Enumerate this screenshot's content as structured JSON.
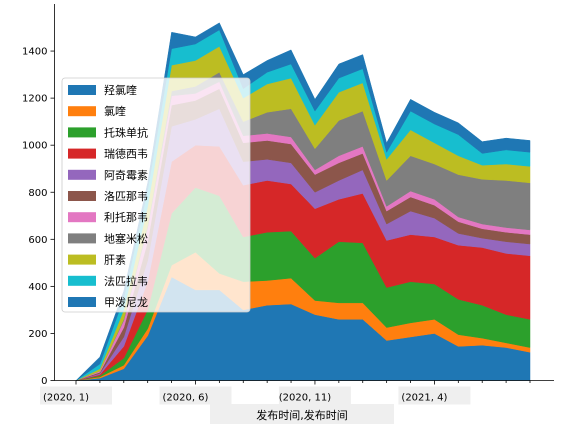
{
  "chart_data": {
    "type": "area",
    "stacked": true,
    "xlabel": "发布时间,发布时间",
    "ylabel": "",
    "ylim": [
      0,
      1600
    ],
    "yticks": [
      0,
      200,
      400,
      600,
      800,
      1000,
      1200,
      1400
    ],
    "xtick_labels": [
      "(2020, 1)",
      "(2020, 6)",
      "(2020, 11)",
      "(2021, 4)"
    ],
    "xtick_index": [
      0,
      5,
      10,
      15
    ],
    "x": [
      "2020-01",
      "2020-02",
      "2020-03",
      "2020-04",
      "2020-05",
      "2020-06",
      "2020-07",
      "2020-08",
      "2020-09",
      "2020-10",
      "2020-11",
      "2020-12",
      "2021-01",
      "2021-02",
      "2021-03",
      "2021-04",
      "2021-05",
      "2021-06",
      "2021-07",
      "2021-08"
    ],
    "legend_position": "upper-left",
    "grid": false,
    "series": [
      {
        "name": "羟氯喹",
        "color": "#1f77b4",
        "values": [
          0,
          10,
          50,
          190,
          440,
          385,
          385,
          300,
          320,
          325,
          280,
          260,
          260,
          170,
          185,
          200,
          145,
          150,
          140,
          120
        ]
      },
      {
        "name": "氯喹",
        "color": "#ff7f0e",
        "values": [
          0,
          5,
          15,
          30,
          50,
          160,
          70,
          120,
          105,
          110,
          60,
          70,
          70,
          55,
          60,
          60,
          50,
          30,
          20,
          20
        ]
      },
      {
        "name": "托珠单抗",
        "color": "#2ca02c",
        "values": [
          0,
          5,
          30,
          80,
          220,
          275,
          330,
          190,
          205,
          200,
          180,
          260,
          255,
          170,
          175,
          150,
          150,
          140,
          120,
          120
        ]
      },
      {
        "name": "瑞德西韦",
        "color": "#d62728",
        "values": [
          0,
          5,
          50,
          120,
          220,
          180,
          210,
          220,
          220,
          200,
          210,
          180,
          210,
          200,
          200,
          200,
          230,
          245,
          260,
          270
        ]
      },
      {
        "name": "阿奇霉素",
        "color": "#9467bd",
        "values": [
          0,
          5,
          40,
          90,
          150,
          110,
          160,
          100,
          90,
          90,
          70,
          80,
          100,
          70,
          100,
          80,
          50,
          40,
          50,
          50
        ]
      },
      {
        "name": "洛匹那韦",
        "color": "#8c564b",
        "values": [
          0,
          5,
          40,
          80,
          90,
          80,
          85,
          80,
          80,
          80,
          75,
          75,
          70,
          55,
          60,
          55,
          50,
          40,
          40,
          40
        ]
      },
      {
        "name": "利托那韦",
        "color": "#e377c2",
        "values": [
          0,
          5,
          30,
          60,
          40,
          30,
          30,
          30,
          30,
          30,
          20,
          30,
          30,
          20,
          25,
          25,
          20,
          20,
          20,
          20
        ]
      },
      {
        "name": "地塞米松",
        "color": "#7f7f7f",
        "values": [
          0,
          0,
          5,
          10,
          20,
          30,
          40,
          60,
          90,
          120,
          90,
          150,
          150,
          110,
          150,
          150,
          180,
          190,
          200,
          200
        ]
      },
      {
        "name": "肝素",
        "color": "#bcbd22",
        "values": [
          0,
          10,
          40,
          80,
          110,
          110,
          110,
          100,
          120,
          130,
          100,
          120,
          120,
          90,
          110,
          90,
          80,
          60,
          70,
          70
        ]
      },
      {
        "name": "法匹拉韦",
        "color": "#17becf",
        "values": [
          0,
          20,
          50,
          70,
          70,
          70,
          70,
          40,
          50,
          60,
          60,
          60,
          60,
          30,
          80,
          80,
          90,
          50,
          60,
          60
        ]
      },
      {
        "name": "甲泼尼龙",
        "color": "#1f77b4",
        "values": [
          0,
          30,
          30,
          30,
          70,
          30,
          30,
          60,
          50,
          60,
          50,
          60,
          60,
          40,
          50,
          50,
          50,
          50,
          50,
          50
        ]
      }
    ]
  }
}
